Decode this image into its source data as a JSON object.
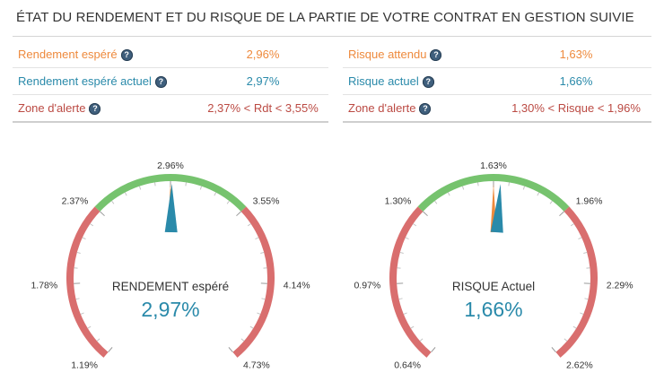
{
  "title": "ÉTAT DU RENDEMENT ET DU RISQUE DE LA PARTIE DE VOTRE CONTRAT EN GESTION SUIVIE",
  "colors": {
    "orange": "#ee8a3d",
    "blue": "#2a8aaa",
    "red": "#bb4a43",
    "green_band": "#76c36e",
    "red_band": "#d96e6e"
  },
  "rendement_table": [
    {
      "label": "Rendement espéré",
      "value": "2,96%",
      "color": "orange",
      "icon": "help-icon"
    },
    {
      "label": "Rendement espéré actuel",
      "value": "2,97%",
      "color": "blue",
      "icon": "help-icon"
    },
    {
      "label": "Zone d'alerte",
      "value": "2,37% < Rdt < 3,55%",
      "color": "red",
      "icon": "help-icon"
    }
  ],
  "risque_table": [
    {
      "label": "Risque attendu",
      "value": "1,63%",
      "color": "orange",
      "icon": "help-icon"
    },
    {
      "label": "Risque actuel",
      "value": "1,66%",
      "color": "blue",
      "icon": "help-icon"
    },
    {
      "label": "Zone d'alerte",
      "value": "1,30% < Risque < 1,96%",
      "color": "red",
      "icon": "help-icon"
    }
  ],
  "gauges": {
    "rendement": {
      "caption": "RENDEMENT espéré",
      "value_display": "2,97%",
      "min": 1.19,
      "max": 4.73,
      "green_from": 2.37,
      "green_to": 3.55,
      "target": 2.96,
      "actual": 2.97,
      "tick_labels": [
        {
          "value": 1.19,
          "text": "1.19%"
        },
        {
          "value": 1.78,
          "text": "1.78%"
        },
        {
          "value": 2.37,
          "text": "2.37%"
        },
        {
          "value": 2.96,
          "text": "2.96%"
        },
        {
          "value": 3.55,
          "text": "3.55%"
        },
        {
          "value": 4.14,
          "text": "4.14%"
        },
        {
          "value": 4.73,
          "text": "4.73%"
        }
      ]
    },
    "risque": {
      "caption": "RISQUE Actuel",
      "value_display": "1,66%",
      "min": 0.64,
      "max": 2.62,
      "green_from": 1.3,
      "green_to": 1.96,
      "target": 1.63,
      "actual": 1.66,
      "tick_labels": [
        {
          "value": 0.64,
          "text": "0.64%"
        },
        {
          "value": 0.97,
          "text": "0.97%"
        },
        {
          "value": 1.3,
          "text": "1.30%"
        },
        {
          "value": 1.63,
          "text": "1.63%"
        },
        {
          "value": 1.96,
          "text": "1.96%"
        },
        {
          "value": 2.29,
          "text": "2.29%"
        },
        {
          "value": 2.62,
          "text": "2.62%"
        }
      ]
    }
  }
}
